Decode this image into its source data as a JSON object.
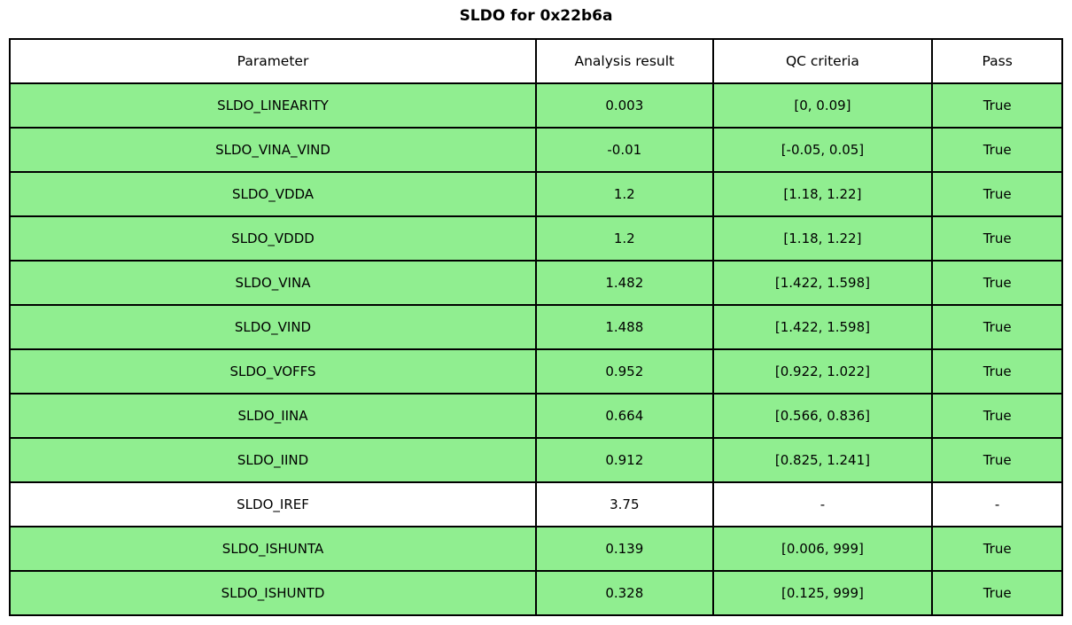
{
  "title": "SLDO for 0x22b6a",
  "chart_data": {
    "type": "table",
    "title": "SLDO for 0x22b6a",
    "columns": [
      "Parameter",
      "Analysis result",
      "QC criteria",
      "Pass"
    ],
    "rows": [
      {
        "parameter": "SLDO_LINEARITY",
        "analysis_result": "0.003",
        "qc_criteria": "[0, 0.09]",
        "pass": "True",
        "highlight": true
      },
      {
        "parameter": "SLDO_VINA_VIND",
        "analysis_result": "-0.01",
        "qc_criteria": "[-0.05, 0.05]",
        "pass": "True",
        "highlight": true
      },
      {
        "parameter": "SLDO_VDDA",
        "analysis_result": "1.2",
        "qc_criteria": "[1.18, 1.22]",
        "pass": "True",
        "highlight": true
      },
      {
        "parameter": "SLDO_VDDD",
        "analysis_result": "1.2",
        "qc_criteria": "[1.18, 1.22]",
        "pass": "True",
        "highlight": true
      },
      {
        "parameter": "SLDO_VINA",
        "analysis_result": "1.482",
        "qc_criteria": "[1.422, 1.598]",
        "pass": "True",
        "highlight": true
      },
      {
        "parameter": "SLDO_VIND",
        "analysis_result": "1.488",
        "qc_criteria": "[1.422, 1.598]",
        "pass": "True",
        "highlight": true
      },
      {
        "parameter": "SLDO_VOFFS",
        "analysis_result": "0.952",
        "qc_criteria": "[0.922, 1.022]",
        "pass": "True",
        "highlight": true
      },
      {
        "parameter": "SLDO_IINA",
        "analysis_result": "0.664",
        "qc_criteria": "[0.566, 0.836]",
        "pass": "True",
        "highlight": true
      },
      {
        "parameter": "SLDO_IIND",
        "analysis_result": "0.912",
        "qc_criteria": "[0.825, 1.241]",
        "pass": "True",
        "highlight": true
      },
      {
        "parameter": "SLDO_IREF",
        "analysis_result": "3.75",
        "qc_criteria": "-",
        "pass": "-",
        "highlight": false
      },
      {
        "parameter": "SLDO_ISHUNTA",
        "analysis_result": "0.139",
        "qc_criteria": "[0.006, 999]",
        "pass": "True",
        "highlight": true
      },
      {
        "parameter": "SLDO_ISHUNTD",
        "analysis_result": "0.328",
        "qc_criteria": "[0.125, 999]",
        "pass": "True",
        "highlight": true
      }
    ],
    "colors": {
      "pass_row": "#90EE90",
      "neutral_row": "#FFFFFF",
      "border": "#000000",
      "text": "#000000"
    },
    "layout": {
      "column_width_percents": [
        50,
        16.8,
        20.85,
        12.35
      ],
      "legend_position": "none",
      "grid": "full-cell-borders"
    }
  }
}
